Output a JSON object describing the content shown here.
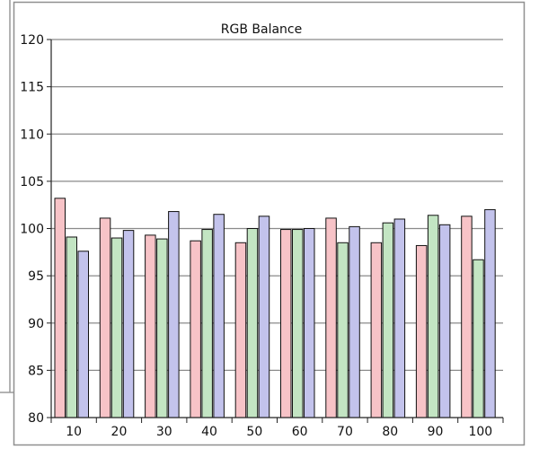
{
  "chart_data": {
    "type": "bar",
    "title": "RGB Balance",
    "xlabel": "",
    "ylabel": "",
    "ylim": [
      80,
      120
    ],
    "yticks": [
      80,
      85,
      90,
      95,
      100,
      105,
      110,
      115,
      120
    ],
    "categories": [
      "10",
      "20",
      "30",
      "40",
      "50",
      "60",
      "70",
      "80",
      "90",
      "100"
    ],
    "grid": true,
    "legend": "none",
    "series": [
      {
        "color": "#f7c3c7",
        "values": [
          103.2,
          101.1,
          99.3,
          98.7,
          98.5,
          99.9,
          101.1,
          98.5,
          98.2,
          101.3
        ]
      },
      {
        "color": "#c3e5c3",
        "values": [
          99.1,
          99.0,
          98.9,
          99.9,
          100.0,
          99.9,
          98.5,
          100.6,
          101.4,
          96.7
        ]
      },
      {
        "color": "#c3c3ec",
        "values": [
          97.6,
          99.8,
          101.8,
          101.5,
          101.3,
          100.0,
          100.2,
          101.0,
          100.4,
          102.0
        ]
      }
    ]
  }
}
